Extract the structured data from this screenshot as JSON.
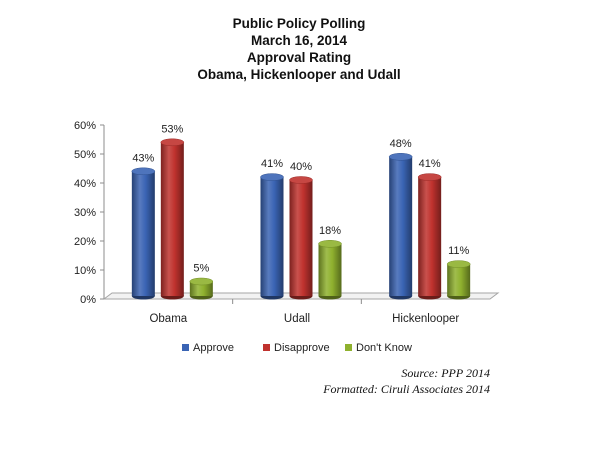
{
  "chart_data": {
    "type": "bar",
    "title_lines": [
      "Public Policy Polling",
      "March 16, 2014",
      "Approval Rating",
      "Obama, Hickenlooper and Udall"
    ],
    "categories": [
      "Obama",
      "Udall",
      "Hickenlooper"
    ],
    "series": [
      {
        "name": "Approve",
        "values": [
          43,
          41,
          48
        ],
        "color": "#3a64b4",
        "labels": [
          "43%",
          "41%",
          "48%"
        ]
      },
      {
        "name": "Disapprove",
        "values": [
          53,
          40,
          41
        ],
        "color": "#c0322e",
        "labels": [
          "53%",
          "40%",
          "41%"
        ]
      },
      {
        "name": "Don't Know",
        "values": [
          5,
          18,
          11
        ],
        "color": "#8fb12e",
        "labels": [
          "5%",
          "18%",
          "11%"
        ]
      }
    ],
    "ylim": [
      0,
      60
    ],
    "yticks": [
      "0%",
      "10%",
      "20%",
      "30%",
      "40%",
      "50%",
      "60%"
    ],
    "legend_position": "bottom",
    "grid": false
  },
  "source_lines": [
    "Source: PPP 2014",
    "Formatted: Ciruli Associates 2014"
  ]
}
